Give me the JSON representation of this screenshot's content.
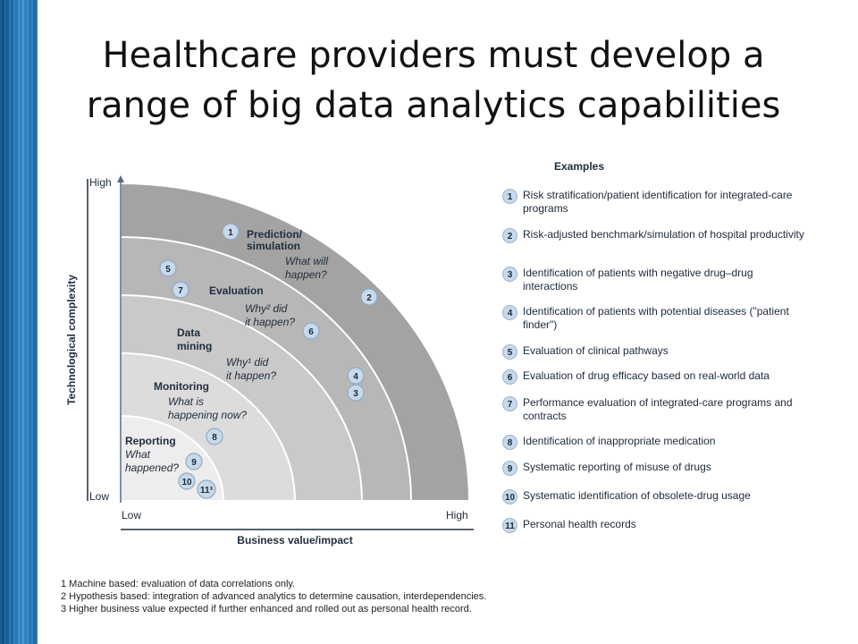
{
  "title": {
    "line1": "Healthcare providers must develop a",
    "line2": "range of big data analytics capabilities"
  },
  "colors": {
    "sidebar": "#1d74b3",
    "band_outer": "#a3a3a3",
    "band_2": "#b7b7b7",
    "band_3": "#c9c9c9",
    "band_4": "#dcdcdc",
    "band_inner": "#ededed",
    "badge": "#c7d9ea"
  },
  "chart": {
    "y_axis": {
      "title": "Technological complexity",
      "high": "High",
      "low": "Low"
    },
    "x_axis": {
      "title": "Business value/impact",
      "low": "Low",
      "high": "High"
    },
    "levels": [
      {
        "title_lines": [
          "Prediction/",
          "simulation"
        ],
        "question_lines": [
          "What will",
          "happen?"
        ]
      },
      {
        "title_lines": [
          "Evaluation"
        ],
        "question_lines": [
          "Why² did",
          "it happen?"
        ]
      },
      {
        "title_lines": [
          "Data",
          "mining"
        ],
        "question_lines": [
          "Why¹ did",
          "it happen?"
        ]
      },
      {
        "title_lines": [
          "Monitoring"
        ],
        "question_lines": [
          "What is",
          "happening now?"
        ]
      },
      {
        "title_lines": [
          "Reporting"
        ],
        "question_lines": [
          "What",
          "happened?"
        ]
      }
    ],
    "badges": [
      "1",
      "5",
      "7",
      "2",
      "6",
      "4",
      "3",
      "8",
      "9",
      "10",
      "11³"
    ]
  },
  "examples": {
    "heading": "Examples",
    "items": [
      {
        "num": "1",
        "text": "Risk stratification/patient identification for integrated-care programs"
      },
      {
        "num": "2",
        "text": "Risk-adjusted benchmark/simulation of hospital productivity"
      },
      {
        "num": "3",
        "text": "Identification of patients with negative drug–drug interactions"
      },
      {
        "num": "4",
        "text": "Identification of patients with potential diseases (\"patient finder\")"
      },
      {
        "num": "5",
        "text": "Evaluation of clinical pathways"
      },
      {
        "num": "6",
        "text": "Evaluation of drug efficacy based on real-world data"
      },
      {
        "num": "7",
        "text": "Performance evaluation of integrated-care programs and contracts"
      },
      {
        "num": "8",
        "text": "Identification of inappropriate medication"
      },
      {
        "num": "9",
        "text": "Systematic reporting of misuse of drugs"
      },
      {
        "num": "10",
        "text": "Systematic identification of obsolete-drug usage"
      },
      {
        "num": "11",
        "text": "Personal health records"
      }
    ]
  },
  "footnotes": [
    "1 Machine based: evaluation of data correlations only.",
    "2 Hypothesis based: integration of advanced analytics to determine causation, interdependencies.",
    "3 Higher business value expected if further enhanced and rolled out as personal health record."
  ]
}
